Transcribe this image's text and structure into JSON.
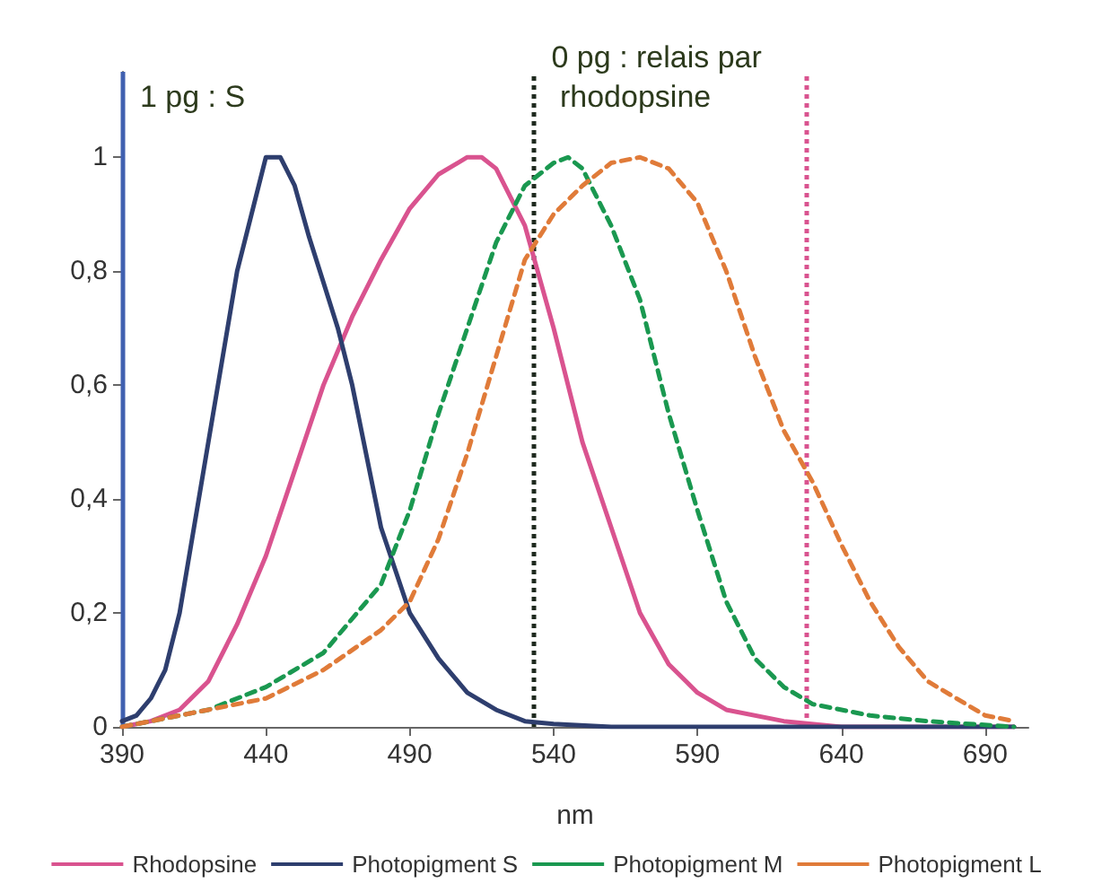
{
  "chart_data": {
    "type": "line",
    "xlabel": "nm",
    "xlim": [
      390,
      705
    ],
    "xticks": [
      390,
      440,
      490,
      540,
      590,
      640,
      690
    ],
    "ylim": [
      0,
      1.15
    ],
    "yticks": [
      {
        "value": 0,
        "label": "0"
      },
      {
        "value": 0.2,
        "label": "0,2"
      },
      {
        "value": 0.4,
        "label": "0,4"
      },
      {
        "value": 0.6,
        "label": "0,6"
      },
      {
        "value": 0.8,
        "label": "0,8"
      },
      {
        "value": 1,
        "label": "1"
      }
    ],
    "grid": false,
    "legend": "bottom",
    "marker": "none",
    "series": [
      {
        "name": "Rhodopsine",
        "color": "#d9538f",
        "line_style": "solid",
        "x": [
          390,
          400,
          410,
          420,
          430,
          440,
          450,
          460,
          470,
          480,
          490,
          500,
          510,
          515,
          520,
          530,
          540,
          550,
          560,
          570,
          580,
          590,
          600,
          620,
          640,
          700
        ],
        "values": [
          0,
          0.01,
          0.03,
          0.08,
          0.18,
          0.3,
          0.45,
          0.6,
          0.72,
          0.82,
          0.91,
          0.97,
          1,
          1,
          0.98,
          0.88,
          0.7,
          0.5,
          0.35,
          0.2,
          0.11,
          0.06,
          0.03,
          0.01,
          0,
          0
        ]
      },
      {
        "name": "Photopigment S",
        "color": "#2e3e6e",
        "line_style": "solid",
        "x": [
          390,
          395,
          400,
          405,
          410,
          420,
          430,
          440,
          445,
          450,
          455,
          460,
          465,
          470,
          480,
          490,
          500,
          510,
          520,
          530,
          540,
          560,
          700
        ],
        "values": [
          0.01,
          0.02,
          0.05,
          0.1,
          0.2,
          0.5,
          0.8,
          1,
          1,
          0.95,
          0.86,
          0.78,
          0.7,
          0.6,
          0.35,
          0.2,
          0.12,
          0.06,
          0.03,
          0.01,
          0.005,
          0,
          0
        ]
      },
      {
        "name": "Photopigment M",
        "color": "#1a9850",
        "line_style": "dashed",
        "x": [
          390,
          400,
          420,
          440,
          460,
          480,
          490,
          500,
          510,
          520,
          530,
          540,
          545,
          550,
          560,
          570,
          580,
          590,
          600,
          610,
          620,
          630,
          650,
          670,
          700
        ],
        "values": [
          0,
          0.01,
          0.03,
          0.07,
          0.13,
          0.25,
          0.38,
          0.55,
          0.7,
          0.85,
          0.95,
          0.99,
          1,
          0.98,
          0.88,
          0.75,
          0.55,
          0.38,
          0.22,
          0.12,
          0.07,
          0.04,
          0.02,
          0.01,
          0
        ]
      },
      {
        "name": "Photopigment L",
        "color": "#e07b39",
        "line_style": "dashed",
        "x": [
          390,
          400,
          420,
          440,
          460,
          480,
          490,
          500,
          510,
          520,
          530,
          540,
          550,
          560,
          570,
          580,
          590,
          600,
          610,
          620,
          630,
          640,
          650,
          660,
          670,
          680,
          690,
          700
        ],
        "values": [
          0,
          0.01,
          0.03,
          0.05,
          0.1,
          0.17,
          0.22,
          0.33,
          0.48,
          0.65,
          0.82,
          0.9,
          0.95,
          0.99,
          1,
          0.98,
          0.92,
          0.8,
          0.65,
          0.52,
          0.43,
          0.32,
          0.22,
          0.14,
          0.08,
          0.05,
          0.02,
          0.01
        ]
      }
    ],
    "ref_lines": [
      {
        "axis": "x",
        "value": 390,
        "label": "1 pg : S",
        "color": "#4060b0",
        "line_style": "solid"
      },
      {
        "axis": "x",
        "value": 533,
        "label": "0 pg : relais par rhodopsine",
        "color": "#1f2a1f",
        "line_style": "dotted"
      },
      {
        "axis": "x",
        "value": 628,
        "color": "#d9538f",
        "line_style": "dotted"
      }
    ]
  }
}
